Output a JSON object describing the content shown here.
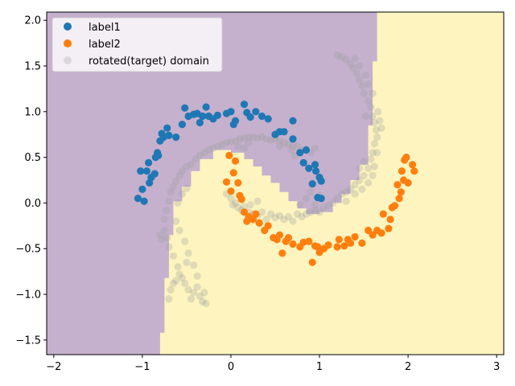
{
  "chart_data": {
    "type": "scatter",
    "title": "",
    "xlabel": "",
    "ylabel": "",
    "xlim": [
      -2.08,
      3.08
    ],
    "ylim": [
      -1.66,
      2.09
    ],
    "xticks": [
      -2,
      -1,
      0,
      1,
      2,
      3
    ],
    "yticks": [
      -1.5,
      -1.0,
      -0.5,
      0.0,
      0.5,
      1.0,
      1.5,
      2.0
    ],
    "xtick_labels": [
      "−2",
      "−1",
      "0",
      "1",
      "2",
      "3"
    ],
    "ytick_labels": [
      "−1.5",
      "−1.0",
      "−0.5",
      "0.0",
      "0.5",
      "1.0",
      "1.5",
      "2.0"
    ],
    "grid": false,
    "legend_position": "top-left",
    "colors": {
      "label1": "#1f77b4",
      "label2": "#ff7f0e",
      "target": "#a0a0a0",
      "region_label1": "#c5b0cd",
      "region_label2": "#fdf4bf"
    },
    "decision_boundary": [
      [
        -0.8,
        -1.66
      ],
      [
        -0.8,
        -1.42
      ],
      [
        -0.75,
        -1.42
      ],
      [
        -0.75,
        -0.82
      ],
      [
        -0.7,
        -0.82
      ],
      [
        -0.7,
        -0.35
      ],
      [
        -0.65,
        -0.35
      ],
      [
        -0.65,
        0.02
      ],
      [
        -0.55,
        0.02
      ],
      [
        -0.55,
        0.18
      ],
      [
        -0.45,
        0.18
      ],
      [
        -0.45,
        0.35
      ],
      [
        -0.35,
        0.35
      ],
      [
        -0.35,
        0.48
      ],
      [
        -0.2,
        0.48
      ],
      [
        -0.2,
        0.58
      ],
      [
        0.0,
        0.58
      ],
      [
        0.0,
        0.55
      ],
      [
        0.15,
        0.55
      ],
      [
        0.15,
        0.48
      ],
      [
        0.25,
        0.48
      ],
      [
        0.25,
        0.4
      ],
      [
        0.35,
        0.4
      ],
      [
        0.35,
        0.3
      ],
      [
        0.45,
        0.3
      ],
      [
        0.45,
        0.22
      ],
      [
        0.55,
        0.22
      ],
      [
        0.55,
        0.12
      ],
      [
        0.65,
        0.12
      ],
      [
        0.65,
        0.02
      ],
      [
        0.75,
        0.02
      ],
      [
        0.75,
        -0.06
      ],
      [
        0.85,
        -0.06
      ],
      [
        0.85,
        -0.12
      ],
      [
        1.0,
        -0.12
      ],
      [
        1.0,
        -0.1
      ],
      [
        1.15,
        -0.1
      ],
      [
        1.15,
        0.0
      ],
      [
        1.25,
        0.0
      ],
      [
        1.25,
        0.1
      ],
      [
        1.35,
        0.1
      ],
      [
        1.35,
        0.25
      ],
      [
        1.45,
        0.25
      ],
      [
        1.45,
        0.42
      ],
      [
        1.55,
        0.42
      ],
      [
        1.55,
        0.85
      ],
      [
        1.6,
        0.85
      ],
      [
        1.6,
        1.55
      ],
      [
        1.65,
        1.55
      ],
      [
        1.65,
        2.09
      ]
    ],
    "series": [
      {
        "name": "label1",
        "points": [
          [
            -1.05,
            0.05
          ],
          [
            -1.02,
            0.35
          ],
          [
            -1.0,
            0.15
          ],
          [
            -0.98,
            0.02
          ],
          [
            -0.95,
            0.35
          ],
          [
            -0.93,
            0.44
          ],
          [
            -0.92,
            0.22
          ],
          [
            -0.9,
            0.28
          ],
          [
            -0.86,
            0.32
          ],
          [
            -0.85,
            0.5
          ],
          [
            -0.83,
            0.55
          ],
          [
            -0.82,
            0.52
          ],
          [
            -0.8,
            0.68
          ],
          [
            -0.78,
            0.76
          ],
          [
            -0.76,
            0.72
          ],
          [
            -0.72,
            0.82
          ],
          [
            -0.7,
            0.74
          ],
          [
            -0.62,
            0.72
          ],
          [
            -0.55,
            0.86
          ],
          [
            -0.52,
            1.04
          ],
          [
            -0.48,
            0.95
          ],
          [
            -0.42,
            0.97
          ],
          [
            -0.38,
            0.98
          ],
          [
            -0.35,
            0.88
          ],
          [
            -0.32,
            0.95
          ],
          [
            -0.28,
            1.05
          ],
          [
            -0.25,
            0.95
          ],
          [
            -0.2,
            0.92
          ],
          [
            -0.15,
            0.96
          ],
          [
            -0.05,
            0.98
          ],
          [
            0.0,
            1.0
          ],
          [
            0.03,
            0.86
          ],
          [
            0.05,
            0.9
          ],
          [
            0.15,
            1.08
          ],
          [
            0.18,
            0.99
          ],
          [
            0.22,
            0.94
          ],
          [
            0.28,
            1.0
          ],
          [
            0.35,
            0.95
          ],
          [
            0.42,
            0.92
          ],
          [
            0.5,
            0.75
          ],
          [
            0.55,
            0.78
          ],
          [
            0.6,
            0.78
          ],
          [
            0.7,
            0.7
          ],
          [
            0.7,
            0.9
          ],
          [
            0.78,
            0.55
          ],
          [
            0.82,
            0.44
          ],
          [
            0.85,
            0.58
          ],
          [
            0.88,
            0.38
          ],
          [
            0.92,
            0.21
          ],
          [
            0.95,
            0.42
          ],
          [
            0.96,
            0.35
          ],
          [
            0.98,
            0.06
          ],
          [
            1.0,
            0.28
          ],
          [
            1.02,
            0.24
          ],
          [
            1.02,
            0.05
          ]
        ]
      },
      {
        "name": "label2",
        "points": [
          [
            -0.05,
            0.23
          ],
          [
            -0.02,
            0.52
          ],
          [
            0.0,
            0.13
          ],
          [
            0.03,
            0.33
          ],
          [
            0.05,
            0.46
          ],
          [
            0.08,
            0.22
          ],
          [
            0.1,
            0.08
          ],
          [
            0.12,
            0.04
          ],
          [
            0.15,
            -0.1
          ],
          [
            0.18,
            -0.2
          ],
          [
            0.2,
            -0.15
          ],
          [
            0.25,
            -0.18
          ],
          [
            0.28,
            -0.12
          ],
          [
            0.32,
            -0.22
          ],
          [
            0.38,
            -0.3
          ],
          [
            0.42,
            -0.25
          ],
          [
            0.48,
            -0.38
          ],
          [
            0.52,
            -0.4
          ],
          [
            0.55,
            -0.35
          ],
          [
            0.58,
            -0.55
          ],
          [
            0.62,
            -0.42
          ],
          [
            0.65,
            -0.38
          ],
          [
            0.7,
            -0.45
          ],
          [
            0.78,
            -0.48
          ],
          [
            0.82,
            -0.43
          ],
          [
            0.88,
            -0.42
          ],
          [
            0.92,
            -0.65
          ],
          [
            0.95,
            -0.47
          ],
          [
            0.98,
            -0.48
          ],
          [
            1.0,
            -0.54
          ],
          [
            1.05,
            -0.5
          ],
          [
            1.1,
            -0.46
          ],
          [
            1.2,
            -0.48
          ],
          [
            1.22,
            -0.4
          ],
          [
            1.28,
            -0.47
          ],
          [
            1.32,
            -0.4
          ],
          [
            1.35,
            -0.44
          ],
          [
            1.4,
            -0.37
          ],
          [
            1.48,
            -0.44
          ],
          [
            1.55,
            -0.3
          ],
          [
            1.6,
            -0.35
          ],
          [
            1.65,
            -0.3
          ],
          [
            1.7,
            -0.33
          ],
          [
            1.72,
            -0.12
          ],
          [
            1.78,
            -0.28
          ],
          [
            1.8,
            -0.18
          ],
          [
            1.82,
            -0.05
          ],
          [
            1.85,
            -0.03
          ],
          [
            1.88,
            0.2
          ],
          [
            1.9,
            0.05
          ],
          [
            1.92,
            0.12
          ],
          [
            1.93,
            0.35
          ],
          [
            1.95,
            0.25
          ],
          [
            1.96,
            0.47
          ],
          [
            1.98,
            0.5
          ],
          [
            2.0,
            0.22
          ],
          [
            2.05,
            0.42
          ],
          [
            2.07,
            0.35
          ]
        ]
      },
      {
        "name": "rotated(target) domain",
        "points": [
          [
            -0.7,
            -1.05
          ],
          [
            -0.68,
            -0.95
          ],
          [
            -0.65,
            -0.88
          ],
          [
            -0.62,
            -0.85
          ],
          [
            -0.58,
            -0.78
          ],
          [
            -0.55,
            -0.82
          ],
          [
            -0.52,
            -0.88
          ],
          [
            -0.48,
            -0.95
          ],
          [
            -0.45,
            -1.05
          ],
          [
            -0.42,
            -0.98
          ],
          [
            -0.38,
            -0.92
          ],
          [
            -0.35,
            -1.02
          ],
          [
            -0.32,
            -1.08
          ],
          [
            -0.28,
            -1.1
          ],
          [
            -0.3,
            -0.98
          ],
          [
            -0.6,
            -0.7
          ],
          [
            -0.65,
            -0.58
          ],
          [
            -0.7,
            -0.48
          ],
          [
            -0.72,
            -0.38
          ],
          [
            -0.75,
            -0.3
          ],
          [
            -0.78,
            -0.4
          ],
          [
            -0.8,
            -0.35
          ],
          [
            -0.75,
            -0.18
          ],
          [
            -0.73,
            -0.08
          ],
          [
            -0.7,
            0.02
          ],
          [
            -0.68,
            0.12
          ],
          [
            -0.65,
            0.18
          ],
          [
            -0.62,
            0.24
          ],
          [
            -0.58,
            0.3
          ],
          [
            -0.55,
            0.35
          ],
          [
            -0.5,
            0.4
          ],
          [
            -0.45,
            0.42
          ],
          [
            -0.4,
            0.48
          ],
          [
            -0.35,
            0.52
          ],
          [
            -0.3,
            0.55
          ],
          [
            -0.25,
            0.58
          ],
          [
            -0.2,
            0.6
          ],
          [
            -0.15,
            0.62
          ],
          [
            -0.1,
            0.64
          ],
          [
            -0.05,
            0.66
          ],
          [
            0.0,
            0.67
          ],
          [
            0.05,
            0.68
          ],
          [
            0.1,
            0.7
          ],
          [
            0.15,
            0.71
          ],
          [
            0.2,
            0.72
          ],
          [
            0.25,
            0.72
          ],
          [
            0.3,
            0.71
          ],
          [
            0.35,
            0.72
          ],
          [
            0.4,
            0.7
          ],
          [
            0.45,
            0.69
          ],
          [
            0.5,
            0.7
          ],
          [
            0.55,
            0.68
          ],
          [
            0.6,
            0.66
          ],
          [
            0.65,
            0.64
          ],
          [
            0.7,
            0.62
          ],
          [
            0.75,
            0.62
          ],
          [
            0.8,
            0.58
          ],
          [
            0.85,
            0.58
          ],
          [
            0.9,
            0.55
          ],
          [
            0.95,
            0.6
          ],
          [
            0.72,
            0.52
          ],
          [
            0.68,
            0.58
          ],
          [
            0.55,
            0.62
          ],
          [
            0.2,
            0.66
          ],
          [
            0.08,
            0.62
          ],
          [
            -0.6,
            0.0
          ],
          [
            -0.55,
            0.1
          ],
          [
            -0.5,
            0.16
          ],
          [
            -0.62,
            -0.2
          ],
          [
            -0.58,
            -0.3
          ],
          [
            -0.52,
            -0.42
          ],
          [
            -0.48,
            -0.55
          ],
          [
            -0.42,
            -0.68
          ],
          [
            -0.38,
            -0.8
          ],
          [
            -0.5,
            -0.65
          ],
          [
            0.0,
            0.05
          ],
          [
            0.02,
            -0.02
          ],
          [
            0.05,
            0.0
          ],
          [
            0.08,
            -0.05
          ],
          [
            0.12,
            -0.08
          ],
          [
            0.15,
            -0.04
          ],
          [
            0.2,
            -0.1
          ],
          [
            0.25,
            -0.12
          ],
          [
            0.3,
            -0.14
          ],
          [
            0.35,
            -0.1
          ],
          [
            0.4,
            -0.18
          ],
          [
            0.45,
            -0.12
          ],
          [
            0.5,
            -0.16
          ],
          [
            0.55,
            -0.14
          ],
          [
            0.6,
            -0.18
          ],
          [
            0.65,
            -0.15
          ],
          [
            0.7,
            -0.2
          ],
          [
            0.75,
            -0.12
          ],
          [
            0.8,
            -0.15
          ],
          [
            0.85,
            -0.12
          ],
          [
            0.9,
            -0.1
          ],
          [
            0.95,
            -0.08
          ],
          [
            1.0,
            -0.1
          ],
          [
            1.05,
            -0.05
          ],
          [
            1.1,
            -0.03
          ],
          [
            1.15,
            0.0
          ],
          [
            1.2,
            0.05
          ],
          [
            1.25,
            0.1
          ],
          [
            1.3,
            0.12
          ],
          [
            1.35,
            0.15
          ],
          [
            1.4,
            0.2
          ],
          [
            1.45,
            0.25
          ],
          [
            1.5,
            0.3
          ],
          [
            1.55,
            0.38
          ],
          [
            1.58,
            0.48
          ],
          [
            1.6,
            0.55
          ],
          [
            1.62,
            0.65
          ],
          [
            1.65,
            0.72
          ],
          [
            1.64,
            0.8
          ],
          [
            1.62,
            0.88
          ],
          [
            1.6,
            0.95
          ],
          [
            1.58,
            1.05
          ],
          [
            1.55,
            1.12
          ],
          [
            1.5,
            1.2
          ],
          [
            1.48,
            1.28
          ],
          [
            1.45,
            1.35
          ],
          [
            1.42,
            1.42
          ],
          [
            1.38,
            1.48
          ],
          [
            1.35,
            1.52
          ],
          [
            1.3,
            1.57
          ],
          [
            1.25,
            1.6
          ],
          [
            1.2,
            1.62
          ],
          [
            1.4,
            1.58
          ],
          [
            1.45,
            1.5
          ],
          [
            1.52,
            1.4
          ],
          [
            1.55,
            1.3
          ],
          [
            1.6,
            1.2
          ],
          [
            1.66,
            1.0
          ],
          [
            1.68,
            0.9
          ],
          [
            1.7,
            0.82
          ],
          [
            1.62,
            0.4
          ],
          [
            1.55,
            0.22
          ],
          [
            1.48,
            0.15
          ],
          [
            1.4,
            0.1
          ],
          [
            1.3,
            0.02
          ],
          [
            1.45,
            0.38
          ],
          [
            1.5,
            0.45
          ],
          [
            1.6,
            0.3
          ],
          [
            1.65,
            0.55
          ],
          [
            1.52,
            0.95
          ],
          [
            0.9,
            0.12
          ],
          [
            1.0,
            0.08
          ],
          [
            0.95,
            -0.02
          ],
          [
            0.85,
            0.05
          ],
          [
            0.78,
            -0.02
          ],
          [
            0.3,
            0.02
          ],
          [
            0.22,
            -0.02
          ],
          [
            0.1,
            0.08
          ],
          [
            -0.05,
            0.1
          ],
          [
            0.15,
            0.6
          ]
        ]
      }
    ]
  }
}
